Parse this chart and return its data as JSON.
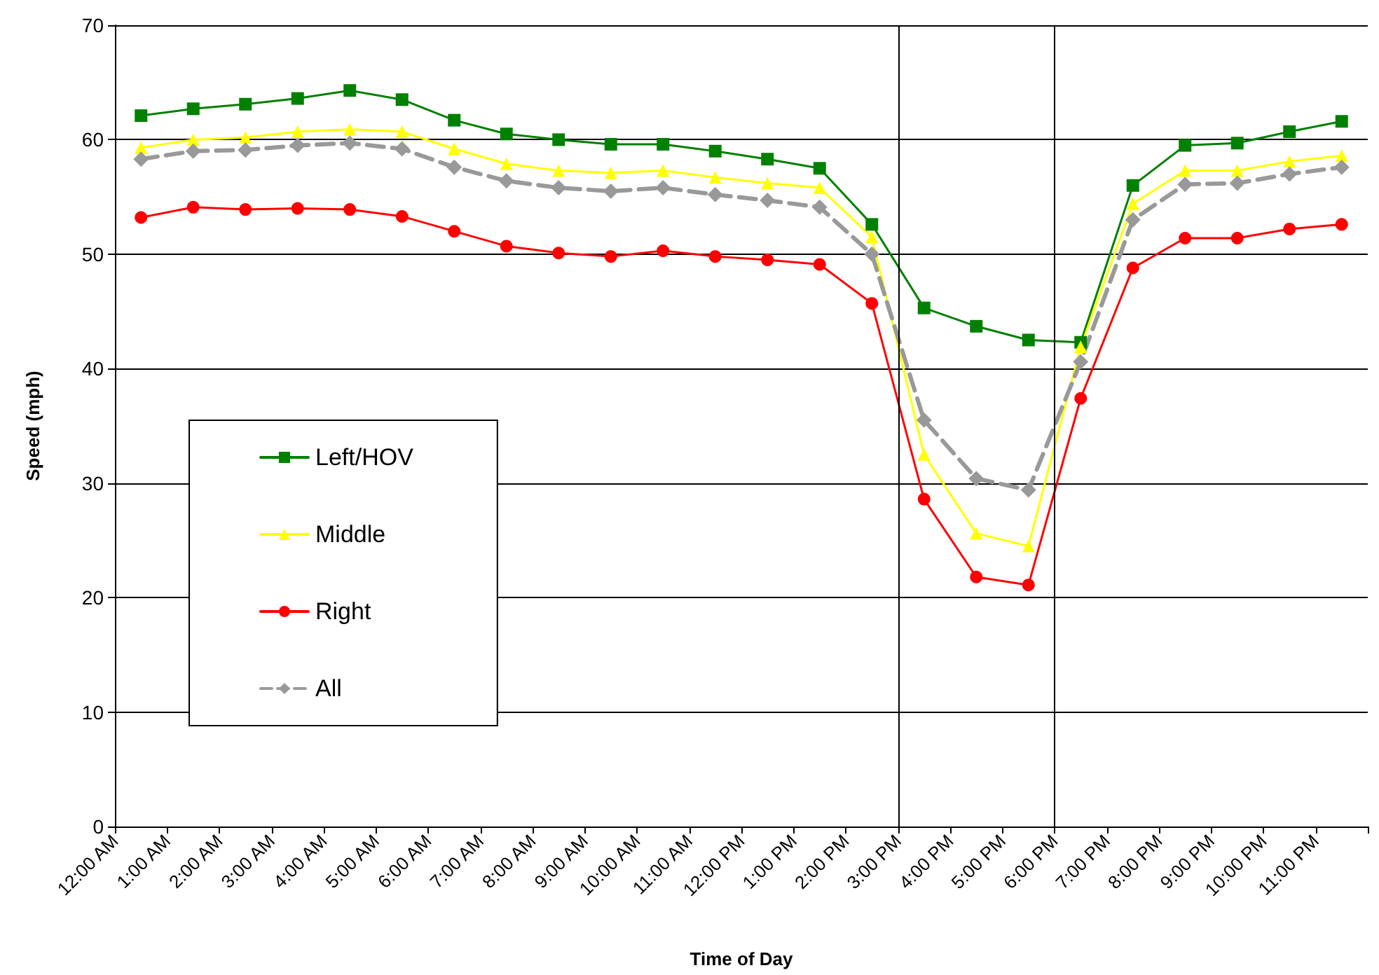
{
  "chart_data": {
    "type": "line",
    "xlabel": "Time of Day",
    "ylabel": "Speed (mph)",
    "x": [
      0.5,
      1.5,
      2.5,
      3.5,
      4.5,
      5.5,
      6.5,
      7.5,
      8.5,
      9.5,
      10.5,
      11.5,
      12.5,
      13.5,
      14.5,
      15.5,
      16.5,
      17.5,
      18.5,
      19.5,
      20.5,
      21.5,
      22.5,
      23.5
    ],
    "xlim": [
      0,
      24
    ],
    "xticks": [
      {
        "value": 0,
        "label": "12:00 AM"
      },
      {
        "value": 1,
        "label": "1:00 AM"
      },
      {
        "value": 2,
        "label": "2:00 AM"
      },
      {
        "value": 3,
        "label": "3:00 AM"
      },
      {
        "value": 4,
        "label": "4:00 AM"
      },
      {
        "value": 5,
        "label": "5:00 AM"
      },
      {
        "value": 6,
        "label": "6:00 AM"
      },
      {
        "value": 7,
        "label": "7:00 AM"
      },
      {
        "value": 8,
        "label": "8:00 AM"
      },
      {
        "value": 9,
        "label": "9:00 AM"
      },
      {
        "value": 10,
        "label": "10:00 AM"
      },
      {
        "value": 11,
        "label": "11:00 AM"
      },
      {
        "value": 12,
        "label": "12:00 PM"
      },
      {
        "value": 13,
        "label": "1:00 PM"
      },
      {
        "value": 14,
        "label": "2:00 PM"
      },
      {
        "value": 15,
        "label": "3:00 PM"
      },
      {
        "value": 16,
        "label": "4:00 PM"
      },
      {
        "value": 17,
        "label": "5:00 PM"
      },
      {
        "value": 18,
        "label": "6:00 PM"
      },
      {
        "value": 19,
        "label": "7:00 PM"
      },
      {
        "value": 20,
        "label": "8:00 PM"
      },
      {
        "value": 21,
        "label": "9:00 PM"
      },
      {
        "value": 22,
        "label": "10:00 PM"
      },
      {
        "value": 23,
        "label": "11:00 PM"
      },
      {
        "value": 24,
        "label": null
      }
    ],
    "ylim": [
      0,
      70
    ],
    "yticks": [
      0,
      10,
      20,
      30,
      40,
      50,
      60,
      70
    ],
    "grid": "y",
    "legend": "left",
    "series": [
      {
        "name": "Left/HOV",
        "color": "#008000",
        "marker": "square",
        "line_style": "solid",
        "values": [
          62.1,
          62.7,
          63.1,
          63.6,
          64.3,
          63.5,
          61.7,
          60.5,
          60.0,
          59.6,
          59.6,
          59.0,
          58.3,
          57.5,
          52.6,
          45.3,
          43.7,
          42.5,
          42.3,
          56.0,
          59.5,
          59.7,
          60.7,
          61.6
        ]
      },
      {
        "name": "Middle",
        "color": "#ffff00",
        "marker": "triangle",
        "line_style": "solid",
        "values": [
          59.3,
          60.0,
          60.2,
          60.7,
          60.9,
          60.7,
          59.2,
          57.9,
          57.3,
          57.1,
          57.3,
          56.7,
          56.2,
          55.8,
          51.5,
          32.5,
          25.6,
          24.5,
          41.9,
          54.4,
          57.3,
          57.3,
          58.1,
          58.6
        ]
      },
      {
        "name": "Right",
        "color": "#ff0000",
        "marker": "circle",
        "line_style": "solid",
        "values": [
          53.2,
          54.1,
          53.9,
          54.0,
          53.9,
          53.3,
          52.0,
          50.7,
          50.1,
          49.8,
          50.3,
          49.8,
          49.5,
          49.1,
          45.7,
          28.6,
          21.8,
          21.1,
          37.4,
          48.8,
          51.4,
          51.4,
          52.2,
          52.6
        ]
      },
      {
        "name": "All",
        "color": "#999999",
        "marker": "diamond",
        "line_style": "dashed",
        "values": [
          58.3,
          59.0,
          59.1,
          59.5,
          59.7,
          59.2,
          57.6,
          56.4,
          55.8,
          55.5,
          55.8,
          55.2,
          54.7,
          54.1,
          50.0,
          35.5,
          30.4,
          29.4,
          40.6,
          53.0,
          56.1,
          56.2,
          57.0,
          57.6
        ]
      }
    ],
    "ref_lines": [
      {
        "axis": "x",
        "value": 15,
        "color": "#000000"
      },
      {
        "axis": "x",
        "value": 18,
        "color": "#000000"
      }
    ]
  }
}
